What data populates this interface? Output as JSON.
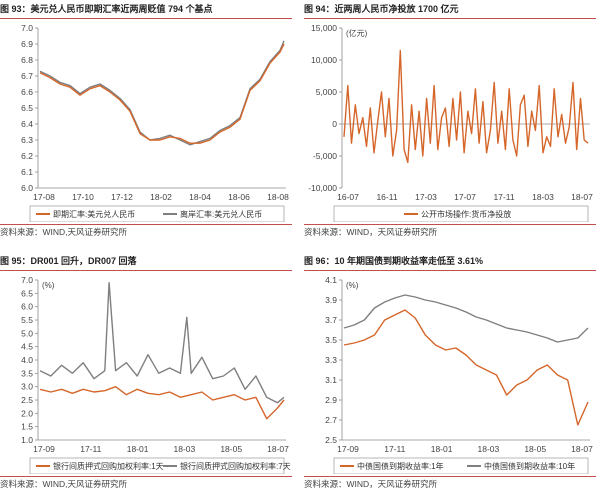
{
  "panels": [
    {
      "title": "图 93：美元兑人民币即期汇率近两周贬值 794 个基点",
      "source": "资料来源：WIND,天风证券研究所"
    },
    {
      "title": "图 94：近两周人民币净投放 1700 亿元",
      "source": "资料来源：WIND，天风证券研究所"
    },
    {
      "title": "图 95：DR001 回升，DR007 回落",
      "source": "资料来源：WIND,天风证券研究所"
    },
    {
      "title": "图 96：10 年期国债到期收益率走低至 3.61%",
      "source": "资料来源：WIND，天风证券研究所"
    }
  ],
  "colors": {
    "orange": "#d5662a",
    "gray": "#7f7f7f",
    "accent_red": "#c0504d"
  },
  "chart_data": [
    {
      "type": "line",
      "title": "",
      "unit": "",
      "ylim": [
        6.0,
        7.0
      ],
      "yticks": [
        "6.0",
        "6.1",
        "6.2",
        "6.3",
        "6.4",
        "6.5",
        "6.6",
        "6.7",
        "6.8",
        "6.9",
        "7.0"
      ],
      "xticks": [
        "17-08",
        "17-10",
        "17-12",
        "18-02",
        "18-04",
        "18-06",
        "18-08"
      ],
      "grid": false,
      "legend_position": "bottom",
      "series": [
        {
          "name": "即期汇率:美元兑人民币",
          "color": "#d5662a",
          "x": [
            0,
            0.5,
            1,
            1.5,
            2,
            2.5,
            3,
            3.5,
            4,
            4.5,
            5,
            5.5,
            6,
            6.5,
            7,
            7.5,
            8,
            8.5,
            9,
            9.5,
            10,
            10.5,
            11,
            11.5,
            12,
            12.2
          ],
          "y": [
            6.72,
            6.69,
            6.65,
            6.63,
            6.58,
            6.62,
            6.64,
            6.6,
            6.55,
            6.48,
            6.34,
            6.3,
            6.3,
            6.32,
            6.31,
            6.28,
            6.28,
            6.3,
            6.35,
            6.38,
            6.43,
            6.61,
            6.67,
            6.78,
            6.85,
            6.9
          ]
        },
        {
          "name": "离岸汇率:美元兑人民币",
          "color": "#7f7f7f",
          "x": [
            0,
            0.5,
            1,
            1.5,
            2,
            2.5,
            3,
            3.5,
            4,
            4.5,
            5,
            5.5,
            6,
            6.5,
            7,
            7.5,
            8,
            8.5,
            9,
            9.5,
            10,
            10.5,
            11,
            11.5,
            12,
            12.2
          ],
          "y": [
            6.73,
            6.7,
            6.66,
            6.64,
            6.59,
            6.63,
            6.65,
            6.61,
            6.56,
            6.49,
            6.35,
            6.3,
            6.31,
            6.33,
            6.3,
            6.27,
            6.29,
            6.31,
            6.36,
            6.39,
            6.44,
            6.62,
            6.68,
            6.79,
            6.86,
            6.92
          ]
        }
      ]
    },
    {
      "type": "line",
      "title": "",
      "unit": "(亿元)",
      "ylim": [
        -10000,
        15000
      ],
      "yticks": [
        "-10,000",
        "-5,000",
        "0",
        "5,000",
        "10,000",
        "15,000"
      ],
      "xticks": [
        "16-07",
        "16-11",
        "17-03",
        "17-07",
        "17-11",
        "18-03",
        "18-07"
      ],
      "grid": false,
      "legend_position": "bottom",
      "series": [
        {
          "name": "公开市场操作:货币净投放",
          "color": "#d5662a",
          "values": [
            -2000,
            6000,
            -3000,
            3000,
            -1500,
            1000,
            -3500,
            2500,
            -4500,
            500,
            5000,
            -2000,
            4000,
            -5000,
            -1000,
            11500,
            -4000,
            -6000,
            3000,
            -4000,
            2000,
            -5000,
            4000,
            -3000,
            6000,
            -4000,
            1000,
            2500,
            -3500,
            4000,
            -2500,
            5000,
            -4500,
            2000,
            -1500,
            5500,
            -3000,
            3500,
            -4500,
            -1000,
            6500,
            -3000,
            2000,
            -4000,
            5500,
            -2500,
            -5000,
            3000,
            4500,
            -3500,
            2000,
            -1000,
            6000,
            -4500,
            -2000,
            -3500,
            5500,
            -2000,
            1500,
            -3000,
            -500,
            6500,
            -4000,
            4000,
            -2500,
            -3000
          ]
        }
      ]
    },
    {
      "type": "line",
      "title": "",
      "unit": "(%)",
      "ylim": [
        1.0,
        7.0
      ],
      "yticks": [
        "1.0",
        "1.5",
        "2.0",
        "2.5",
        "3.0",
        "3.5",
        "4.0",
        "4.5",
        "5.0",
        "5.5",
        "6.0",
        "6.5",
        "7.0"
      ],
      "xticks": [
        "17-09",
        "17-11",
        "18-01",
        "18-03",
        "18-05",
        "18-07"
      ],
      "grid": false,
      "legend_position": "bottom",
      "series": [
        {
          "name": "银行间质押式回购加权利率:1天",
          "color": "#d5662a",
          "x": [
            0,
            0.5,
            1,
            1.5,
            2,
            2.5,
            3,
            3.5,
            4,
            4.5,
            5,
            5.5,
            6,
            6.5,
            7,
            7.5,
            8,
            8.5,
            9,
            9.5,
            10,
            10.5,
            11,
            11.3
          ],
          "y": [
            2.9,
            2.8,
            2.9,
            2.75,
            2.9,
            2.8,
            2.85,
            3.0,
            2.7,
            2.9,
            2.75,
            2.7,
            2.8,
            2.6,
            2.7,
            2.8,
            2.5,
            2.6,
            2.7,
            2.5,
            2.6,
            1.8,
            2.2,
            2.5
          ]
        },
        {
          "name": "银行间质押式回购加权利率:7天",
          "color": "#7f7f7f",
          "x": [
            0,
            0.5,
            1,
            1.5,
            2,
            2.5,
            3,
            3.2,
            3.5,
            4,
            4.5,
            5,
            5.5,
            6,
            6.5,
            6.8,
            7,
            7.5,
            8,
            8.5,
            9,
            9.5,
            10,
            10.5,
            11,
            11.3
          ],
          "y": [
            3.6,
            3.4,
            3.8,
            3.5,
            3.9,
            3.3,
            3.6,
            6.9,
            3.6,
            3.9,
            3.4,
            4.2,
            3.5,
            3.7,
            3.5,
            5.6,
            3.5,
            4.1,
            3.3,
            3.4,
            3.7,
            2.9,
            3.4,
            2.6,
            2.4,
            2.6
          ]
        }
      ]
    },
    {
      "type": "line",
      "title": "",
      "unit": "(%)",
      "ylim": [
        2.5,
        4.1
      ],
      "yticks": [
        "2.5",
        "2.7",
        "2.9",
        "3.1",
        "3.3",
        "3.5",
        "3.7",
        "3.9",
        "4.1"
      ],
      "xticks": [
        "17-09",
        "17-11",
        "18-01",
        "18-03",
        "18-05",
        "18-07"
      ],
      "grid": false,
      "legend_position": "bottom",
      "series": [
        {
          "name": "中债国债到期收益率:1年",
          "color": "#d5662a",
          "x": [
            0,
            0.5,
            1,
            1.5,
            2,
            2.5,
            3,
            3.5,
            4,
            4.5,
            5,
            5.5,
            6,
            6.5,
            7,
            7.5,
            8,
            8.5,
            9,
            9.5,
            10,
            10.5,
            11,
            11.5,
            12
          ],
          "y": [
            3.45,
            3.47,
            3.5,
            3.55,
            3.7,
            3.75,
            3.8,
            3.72,
            3.55,
            3.45,
            3.4,
            3.42,
            3.35,
            3.25,
            3.2,
            3.15,
            2.95,
            3.05,
            3.1,
            3.2,
            3.25,
            3.15,
            3.1,
            2.65,
            2.88
          ]
        },
        {
          "name": "中债国债到期收益率:10年",
          "color": "#7f7f7f",
          "x": [
            0,
            0.5,
            1,
            1.5,
            2,
            2.5,
            3,
            3.5,
            4,
            4.5,
            5,
            5.5,
            6,
            6.5,
            7,
            7.5,
            8,
            8.5,
            9,
            9.5,
            10,
            10.5,
            11,
            11.5,
            12
          ],
          "y": [
            3.62,
            3.65,
            3.7,
            3.82,
            3.88,
            3.92,
            3.95,
            3.93,
            3.9,
            3.88,
            3.85,
            3.82,
            3.78,
            3.73,
            3.7,
            3.66,
            3.62,
            3.6,
            3.58,
            3.55,
            3.52,
            3.48,
            3.5,
            3.52,
            3.62
          ]
        }
      ]
    }
  ]
}
